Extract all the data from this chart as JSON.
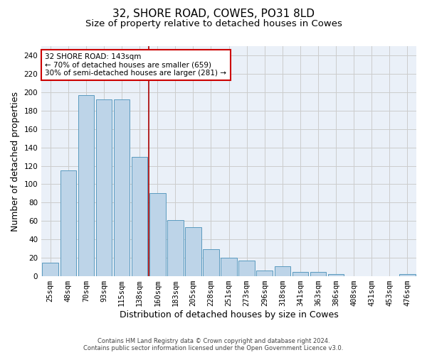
{
  "title": "32, SHORE ROAD, COWES, PO31 8LD",
  "subtitle": "Size of property relative to detached houses in Cowes",
  "xlabel": "Distribution of detached houses by size in Cowes",
  "ylabel": "Number of detached properties",
  "footer_line1": "Contains HM Land Registry data © Crown copyright and database right 2024.",
  "footer_line2": "Contains public sector information licensed under the Open Government Licence v3.0.",
  "categories": [
    "25sqm",
    "48sqm",
    "70sqm",
    "93sqm",
    "115sqm",
    "138sqm",
    "160sqm",
    "183sqm",
    "205sqm",
    "228sqm",
    "251sqm",
    "273sqm",
    "296sqm",
    "318sqm",
    "341sqm",
    "363sqm",
    "386sqm",
    "408sqm",
    "431sqm",
    "453sqm",
    "476sqm"
  ],
  "values": [
    15,
    115,
    197,
    192,
    192,
    130,
    90,
    61,
    53,
    29,
    20,
    17,
    6,
    11,
    5,
    5,
    2,
    0,
    0,
    0,
    2
  ],
  "bar_color": "#bdd4e8",
  "bar_edge_color": "#5a9abf",
  "vline_color": "#aa0000",
  "annotation_text": "32 SHORE ROAD: 143sqm\n← 70% of detached houses are smaller (659)\n30% of semi-detached houses are larger (281) →",
  "annotation_box_color": "#cc0000",
  "ylim": [
    0,
    250
  ],
  "yticks": [
    0,
    20,
    40,
    60,
    80,
    100,
    120,
    140,
    160,
    180,
    200,
    220,
    240
  ],
  "grid_color": "#cccccc",
  "bg_color": "#eaf0f8",
  "title_fontsize": 11,
  "subtitle_fontsize": 9.5,
  "xlabel_fontsize": 9,
  "ylabel_fontsize": 9,
  "tick_fontsize": 7.5,
  "footer_fontsize": 6,
  "ann_fontsize": 7.5
}
